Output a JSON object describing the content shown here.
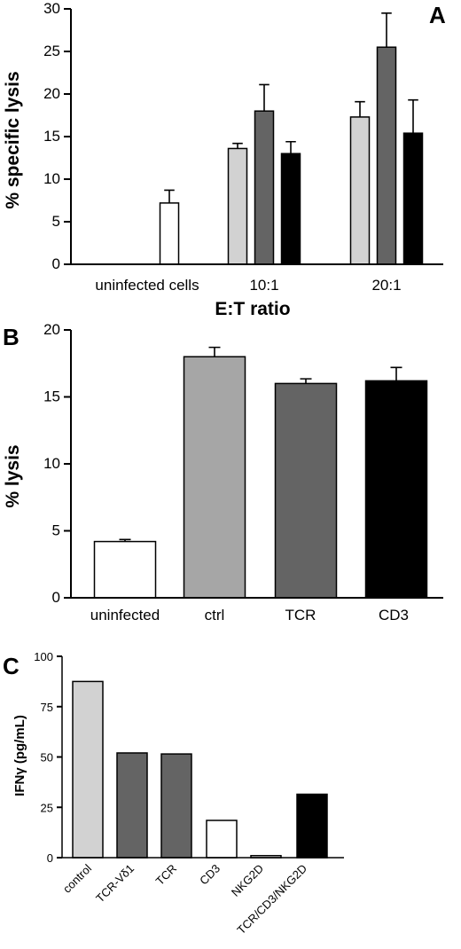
{
  "colors": {
    "white": "#ffffff",
    "light_gray": "#d2d2d2",
    "mid_gray": "#a6a6a6",
    "dark_gray": "#646464",
    "black": "#000000"
  },
  "chart_data": [
    {
      "panel": "A",
      "type": "bar",
      "ylabel": "% specific lysis",
      "xlabel": "E:T ratio",
      "ylim": [
        0,
        30
      ],
      "yticks": [
        0,
        5,
        10,
        15,
        20,
        25,
        30
      ],
      "grid": false,
      "groups": [
        {
          "label": "uninfected cells",
          "bars": [
            {
              "value": 7.2,
              "error": 1.5,
              "color": "white"
            }
          ]
        },
        {
          "label": "10:1",
          "bars": [
            {
              "value": 13.6,
              "error": 0.6,
              "color": "light_gray"
            },
            {
              "value": 18.0,
              "error": 3.1,
              "color": "dark_gray"
            },
            {
              "value": 13.0,
              "error": 1.4,
              "color": "black"
            }
          ]
        },
        {
          "label": "20:1",
          "bars": [
            {
              "value": 17.3,
              "error": 1.8,
              "color": "light_gray"
            },
            {
              "value": 25.5,
              "error": 4.0,
              "color": "dark_gray"
            },
            {
              "value": 15.4,
              "error": 3.9,
              "color": "black"
            }
          ]
        }
      ]
    },
    {
      "panel": "B",
      "type": "bar",
      "ylabel": "% lysis",
      "xlabel": "",
      "ylim": [
        0,
        20
      ],
      "yticks": [
        0,
        5,
        10,
        15,
        20
      ],
      "grid": false,
      "categories": [
        "uninfected",
        "ctrl",
        "TCR",
        "CD3"
      ],
      "values": [
        4.2,
        18.0,
        16.0,
        16.2
      ],
      "errors": [
        0.15,
        0.7,
        0.35,
        1.0
      ],
      "bar_colors": [
        "white",
        "mid_gray",
        "dark_gray",
        "black"
      ]
    },
    {
      "panel": "C",
      "type": "bar",
      "ylabel": "IFNγ (pg/mL)",
      "xlabel": "",
      "ylim": [
        0,
        100
      ],
      "yticks": [
        0,
        25,
        50,
        75,
        100
      ],
      "grid": false,
      "categories": [
        "control",
        "TCR-Vδ1",
        "TCR",
        "CD3",
        "NKG2D",
        "TCR/CD3/NKG2D"
      ],
      "values": [
        87.5,
        52.0,
        51.5,
        18.5,
        1.0,
        31.5
      ],
      "bar_colors": [
        "light_gray",
        "dark_gray",
        "dark_gray",
        "white",
        "white",
        "black"
      ]
    }
  ]
}
